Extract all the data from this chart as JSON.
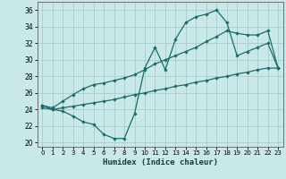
{
  "xlabel": "Humidex (Indice chaleur)",
  "background_color": "#c9e9e9",
  "grid_color": "#aacccc",
  "line_color": "#1a6b6b",
  "xlim": [
    -0.5,
    23.5
  ],
  "ylim": [
    19.5,
    37.0
  ],
  "xticks": [
    0,
    1,
    2,
    3,
    4,
    5,
    6,
    7,
    8,
    9,
    10,
    11,
    12,
    13,
    14,
    15,
    16,
    17,
    18,
    19,
    20,
    21,
    22,
    23
  ],
  "yticks": [
    20,
    22,
    24,
    26,
    28,
    30,
    32,
    34,
    36
  ],
  "line1_x": [
    0,
    1,
    2,
    3,
    4,
    5,
    6,
    7,
    8,
    9,
    10,
    11,
    12,
    13,
    14,
    15,
    16,
    17,
    18,
    19,
    20,
    21,
    22,
    23
  ],
  "line1_y": [
    24.5,
    24.0,
    23.8,
    23.2,
    22.5,
    22.2,
    21.0,
    20.5,
    20.5,
    23.5,
    29.0,
    31.5,
    28.8,
    32.5,
    34.5,
    35.2,
    35.5,
    36.0,
    34.5,
    30.5,
    31.0,
    31.5,
    32.0,
    29.0
  ],
  "line2_x": [
    0,
    1,
    2,
    3,
    4,
    5,
    6,
    7,
    8,
    9,
    10,
    11,
    12,
    13,
    14,
    15,
    16,
    17,
    18,
    19,
    20,
    21,
    22,
    23
  ],
  "line2_y": [
    24.2,
    24.0,
    24.2,
    24.4,
    24.6,
    24.8,
    25.0,
    25.2,
    25.5,
    25.8,
    26.0,
    26.3,
    26.5,
    26.8,
    27.0,
    27.3,
    27.5,
    27.8,
    28.0,
    28.3,
    28.5,
    28.8,
    29.0,
    29.0
  ],
  "line3_x": [
    0,
    1,
    2,
    3,
    4,
    5,
    6,
    7,
    8,
    9,
    10,
    11,
    12,
    13,
    14,
    15,
    16,
    17,
    18,
    19,
    20,
    21,
    22,
    23
  ],
  "line3_y": [
    24.5,
    24.2,
    25.0,
    25.8,
    26.5,
    27.0,
    27.2,
    27.5,
    27.8,
    28.2,
    28.8,
    29.5,
    30.0,
    30.5,
    31.0,
    31.5,
    32.2,
    32.8,
    33.5,
    33.2,
    33.0,
    33.0,
    33.5,
    29.0
  ]
}
